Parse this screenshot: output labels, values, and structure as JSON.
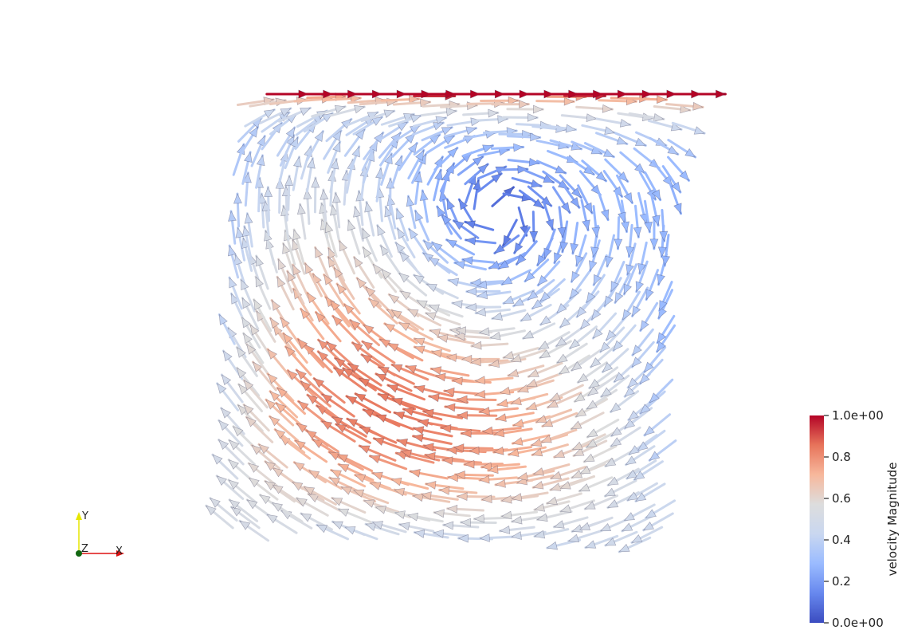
{
  "chart_data": {
    "type": "quiver",
    "description_of_field": "lid-driven cavity flow; lid at top moves in +x; a single primary vortex circulates clockwise",
    "field": {
      "domain": {
        "x": [
          0,
          1
        ],
        "y": [
          0,
          1
        ]
      },
      "grid_n": 26,
      "lid_speed": 1.0,
      "vortex_center": [
        0.6,
        0.75
      ]
    },
    "colorbar": {
      "title": "velocity Magnitude",
      "colormap": "Cool to Warm",
      "stops": [
        "#3b4cc0",
        "#6788ee",
        "#9abbff",
        "#c9d7f0",
        "#dddddd",
        "#f7b89c",
        "#e7745b",
        "#b40426"
      ],
      "range": [
        0,
        1
      ],
      "tick_values": [
        0,
        0.2,
        0.4,
        0.6,
        0.8,
        1.0
      ],
      "tick_labels": [
        "0.0e+00",
        "0.2",
        "0.4",
        "0.6",
        "0.8",
        "1.0e+00"
      ]
    }
  },
  "orientation_axes": {
    "y_label": "Y",
    "z_label": "Z",
    "x_label": "X",
    "x_color": "#dd1111",
    "y_color": "#e6e600",
    "z_color": "#116611"
  }
}
